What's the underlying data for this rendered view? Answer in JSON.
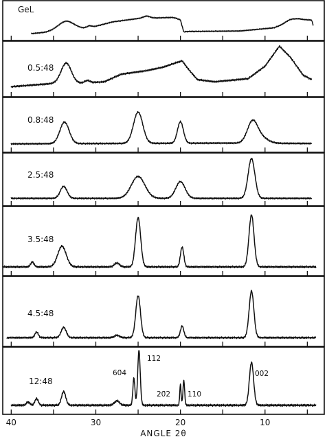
{
  "chart_data": {
    "type": "line",
    "xlabel": "ANGLE 2θ",
    "x_ticks": [
      "40",
      "30",
      "20",
      "10"
    ],
    "x_range": [
      41,
      3
    ],
    "panels": [
      {
        "label": "GeL",
        "peaks": [
          [
            33.5,
            0.28,
            0.9
          ],
          [
            30.8,
            0.08,
            0.3
          ],
          [
            24.0,
            0.08,
            0.4
          ],
          [
            20.0,
            -0.05,
            0.3
          ],
          [
            7.0,
            0.1,
            0.6
          ]
        ],
        "background": [
          [
            37.6,
            0.0
          ],
          [
            36.0,
            0.05
          ],
          [
            34.5,
            0.15
          ],
          [
            33.5,
            0.2
          ],
          [
            31.0,
            0.2
          ],
          [
            28.0,
            0.45
          ],
          [
            25.0,
            0.58
          ],
          [
            21.0,
            0.62
          ],
          [
            20.0,
            0.58
          ],
          [
            19.6,
            0.08
          ],
          [
            13.0,
            0.1
          ],
          [
            9.0,
            0.22
          ],
          [
            6.0,
            0.55
          ],
          [
            4.5,
            0.52
          ],
          [
            4.3,
            0.32
          ]
        ]
      },
      {
        "label": "0.5:48",
        "peaks": [
          [
            33.5,
            0.45,
            0.6
          ],
          [
            31.0,
            0.05,
            0.3
          ]
        ],
        "background": [
          [
            40.0,
            0.04
          ],
          [
            34.5,
            0.12
          ],
          [
            32.0,
            0.12
          ],
          [
            29.0,
            0.15
          ],
          [
            27.0,
            0.32
          ],
          [
            24.0,
            0.4
          ],
          [
            22.0,
            0.48
          ],
          [
            20.8,
            0.56
          ],
          [
            19.8,
            0.62
          ],
          [
            19.0,
            0.42
          ],
          [
            18.0,
            0.2
          ],
          [
            16.0,
            0.15
          ],
          [
            12.0,
            0.22
          ],
          [
            10.0,
            0.5
          ],
          [
            8.3,
            0.95
          ],
          [
            7.0,
            0.7
          ],
          [
            5.5,
            0.3
          ],
          [
            4.5,
            0.2
          ]
        ]
      },
      {
        "label": "0.8:48",
        "peaks": [
          [
            33.7,
            0.55,
            0.55
          ],
          [
            25.0,
            0.8,
            0.55
          ],
          [
            20.0,
            0.55,
            0.35
          ],
          [
            11.5,
            0.52,
            0.6
          ],
          [
            10.5,
            0.15,
            0.8
          ]
        ],
        "background": [
          [
            40.0,
            0.04
          ],
          [
            28.0,
            0.05
          ],
          [
            15.0,
            0.06
          ],
          [
            4.5,
            0.05
          ]
        ]
      },
      {
        "label": "2.5:48",
        "peaks": [
          [
            33.8,
            0.3,
            0.4
          ],
          [
            25.0,
            0.55,
            0.8
          ],
          [
            20.0,
            0.42,
            0.55
          ],
          [
            11.6,
            1.0,
            0.4
          ]
        ],
        "background": [
          [
            40.0,
            0.05
          ],
          [
            15.0,
            0.05
          ],
          [
            4.5,
            0.05
          ]
        ]
      },
      {
        "label": "3.5:48",
        "peaks": [
          [
            37.5,
            0.1,
            0.2
          ],
          [
            34.0,
            0.42,
            0.5
          ],
          [
            27.5,
            0.08,
            0.3
          ],
          [
            25.0,
            1.0,
            0.3
          ],
          [
            19.8,
            0.4,
            0.2
          ],
          [
            11.6,
            1.05,
            0.3
          ]
        ],
        "background": [
          [
            41.0,
            0.04
          ],
          [
            15.0,
            0.04
          ],
          [
            4.0,
            0.04
          ]
        ]
      },
      {
        "label": "4.5:48",
        "peaks": [
          [
            37.0,
            0.12,
            0.2
          ],
          [
            33.8,
            0.22,
            0.3
          ],
          [
            27.5,
            0.05,
            0.3
          ],
          [
            25.0,
            0.9,
            0.28
          ],
          [
            19.8,
            0.25,
            0.2
          ],
          [
            11.6,
            1.0,
            0.28
          ]
        ],
        "background": [
          [
            40.5,
            0.04
          ],
          [
            15.0,
            0.04
          ],
          [
            4.0,
            0.04
          ]
        ]
      },
      {
        "label": "12:48",
        "peaks": [
          [
            38.0,
            0.06,
            0.2
          ],
          [
            37.0,
            0.12,
            0.2
          ],
          [
            33.8,
            0.25,
            0.25
          ],
          [
            27.5,
            0.08,
            0.3
          ],
          [
            25.5,
            0.5,
            0.12
          ],
          [
            24.9,
            1.0,
            0.15
          ],
          [
            20.0,
            0.38,
            0.08
          ],
          [
            19.6,
            0.45,
            0.1
          ],
          [
            11.6,
            0.78,
            0.25
          ]
        ],
        "background": [
          [
            40.0,
            0.04
          ],
          [
            15.0,
            0.04
          ],
          [
            4.0,
            0.04
          ]
        ]
      }
    ],
    "peak_labels": [
      "60̄4",
      "112",
      "20̄2",
      "110",
      "002"
    ]
  }
}
